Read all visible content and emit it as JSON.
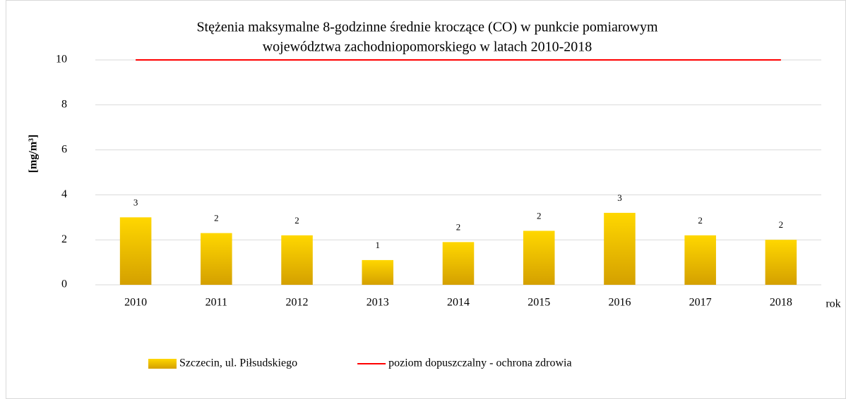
{
  "chart_data": {
    "type": "bar",
    "title": [
      "Stężenia maksymalne 8-godzinne średnie kroczące (CO) w punkcie pomiarowym",
      "województwa zachodniopomorskiego w latach 2010-2018"
    ],
    "y_label": "[mg/m³]",
    "x_label": "rok",
    "categories": [
      "2010",
      "2011",
      "2012",
      "2013",
      "2014",
      "2015",
      "2016",
      "2017",
      "2018"
    ],
    "series": [
      {
        "name": "Szczecin, ul. Piłsudskiego",
        "type": "bar",
        "color": "#ffd700",
        "values": [
          3.0,
          2.3,
          2.2,
          1.1,
          1.9,
          2.4,
          3.2,
          2.2,
          2.0
        ],
        "value_labels": [
          "3",
          "2",
          "2",
          "1",
          "2",
          "2",
          "3",
          "2",
          "2"
        ]
      },
      {
        "name": "poziom dopuszczalny - ochrona zdrowia",
        "type": "line",
        "color": "#ff0000",
        "values": [
          10,
          10,
          10,
          10,
          10,
          10,
          10,
          10,
          10
        ]
      }
    ],
    "ylim": [
      0,
      10
    ],
    "yticks": [
      0,
      2,
      4,
      6,
      8,
      10
    ],
    "grid": true,
    "legend": "bottom"
  }
}
